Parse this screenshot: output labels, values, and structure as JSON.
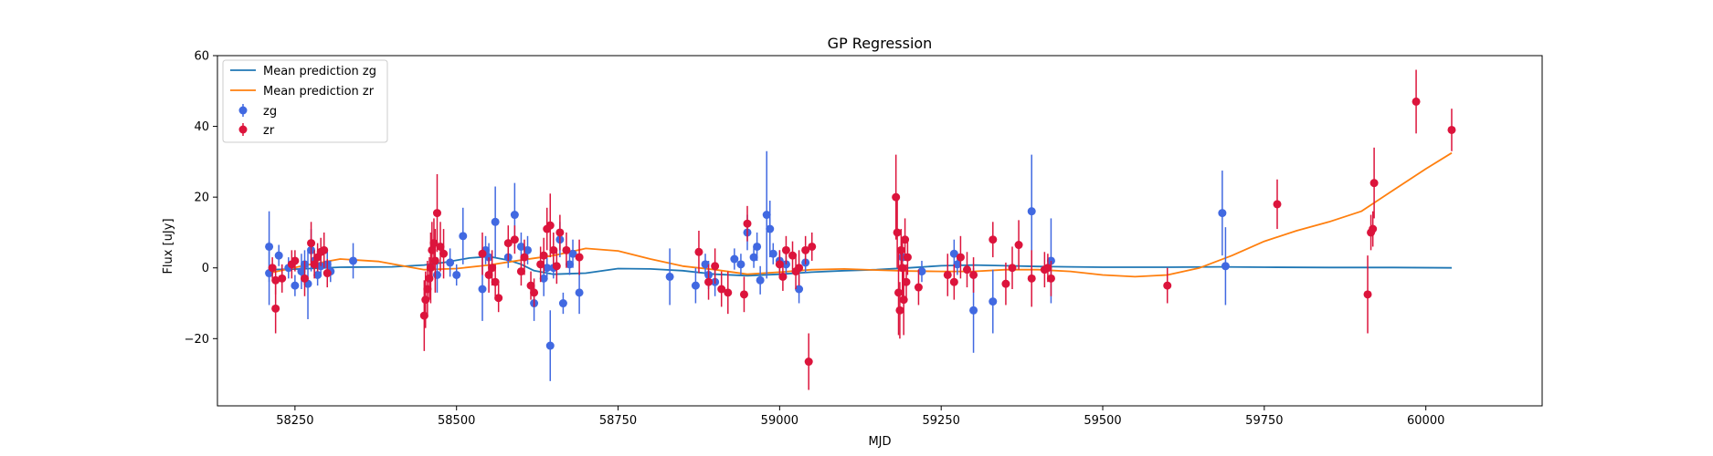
{
  "chart_data": {
    "type": "scatter",
    "title": "GP Regression",
    "xlabel": "MJD",
    "ylabel": "Flux [uJy]",
    "xlim": [
      58130,
      60180
    ],
    "ylim": [
      -39,
      60
    ],
    "xticks": [
      58250,
      58500,
      58750,
      59000,
      59250,
      59500,
      59750,
      60000
    ],
    "yticks": [
      -20,
      0,
      20,
      40,
      60
    ],
    "grid": false,
    "legend_position": "upper-left",
    "legend": [
      "Mean prediction zg",
      "Mean prediction zr",
      "zg",
      "zr"
    ],
    "colors": {
      "mean_zg": "#1f77b4",
      "mean_zr": "#ff7f0e",
      "zg": "#4169e1",
      "zr": "#dc143c"
    },
    "lines": [
      {
        "name": "Mean prediction zg",
        "color": "#1f77b4",
        "x": [
          58210,
          58260,
          58320,
          58400,
          58450,
          58480,
          58520,
          58550,
          58580,
          58600,
          58620,
          58650,
          58700,
          58750,
          58800,
          58850,
          58900,
          58950,
          59000,
          59050,
          59100,
          59150,
          59200,
          59250,
          59300,
          59350,
          59400,
          59450,
          59500,
          59600,
          59680,
          59750,
          59850,
          59950,
          60040
        ],
        "y": [
          -0.5,
          -0.3,
          0.2,
          0.3,
          0.8,
          1.5,
          2.8,
          3.2,
          2.2,
          1.0,
          -0.8,
          -1.8,
          -1.5,
          -0.2,
          -0.3,
          -0.8,
          -1.8,
          -2.2,
          -1.8,
          -1.2,
          -0.8,
          -0.5,
          0.0,
          0.6,
          0.8,
          0.6,
          0.4,
          0.3,
          0.2,
          0.2,
          0.3,
          0.2,
          0.1,
          0.1,
          0.0
        ]
      },
      {
        "name": "Mean prediction zr",
        "color": "#ff7f0e",
        "x": [
          58210,
          58260,
          58320,
          58380,
          58450,
          58500,
          58550,
          58600,
          58650,
          58700,
          58750,
          58800,
          58850,
          58900,
          58950,
          59000,
          59050,
          59100,
          59150,
          59200,
          59250,
          59300,
          59350,
          59400,
          59450,
          59500,
          59550,
          59600,
          59650,
          59700,
          59750,
          59800,
          59850,
          59900,
          59950,
          60000,
          60040
        ],
        "y": [
          -1.5,
          0.5,
          2.5,
          1.8,
          -0.5,
          -0.2,
          0.8,
          2.2,
          3.5,
          5.5,
          4.8,
          2.5,
          0.5,
          -0.5,
          -1.8,
          -1.2,
          -0.5,
          -0.3,
          -0.6,
          -0.9,
          -1.0,
          -1.0,
          -0.5,
          -0.5,
          -1.0,
          -2.0,
          -2.5,
          -2.0,
          0.0,
          3.5,
          7.5,
          10.5,
          13.0,
          16.0,
          22.0,
          28.0,
          32.5
        ]
      }
    ],
    "series": [
      {
        "name": "zg",
        "color": "#4169e1",
        "points": [
          [
            58210,
            6,
            10
          ],
          [
            58210,
            -1.5,
            9
          ],
          [
            58225,
            3.5,
            3
          ],
          [
            58240,
            0,
            3
          ],
          [
            58250,
            -5,
            3
          ],
          [
            58260,
            -1,
            5
          ],
          [
            58265,
            1,
            4
          ],
          [
            58270,
            -4.5,
            10
          ],
          [
            58275,
            5,
            6
          ],
          [
            58280,
            2,
            3
          ],
          [
            58285,
            -2,
            3
          ],
          [
            58290,
            0.5,
            3
          ],
          [
            58300,
            1,
            4
          ],
          [
            58305,
            -1,
            3
          ],
          [
            58340,
            2,
            5
          ],
          [
            58470,
            -2,
            5
          ],
          [
            58490,
            1.5,
            4
          ],
          [
            58500,
            -2,
            3
          ],
          [
            58510,
            9,
            8
          ],
          [
            58540,
            -6,
            9
          ],
          [
            58545,
            5,
            4
          ],
          [
            58550,
            3,
            4
          ],
          [
            58560,
            13,
            10
          ],
          [
            58580,
            3,
            3
          ],
          [
            58590,
            15,
            9
          ],
          [
            58600,
            6,
            4
          ],
          [
            58610,
            5,
            4
          ],
          [
            58620,
            -10,
            5
          ],
          [
            58635,
            -3,
            5
          ],
          [
            58640,
            0,
            3
          ],
          [
            58645,
            -22,
            10
          ],
          [
            58650,
            0,
            3
          ],
          [
            58660,
            8,
            5
          ],
          [
            58665,
            -10,
            3
          ],
          [
            58675,
            1,
            3
          ],
          [
            58680,
            4,
            4
          ],
          [
            58690,
            -7,
            6
          ],
          [
            58830,
            -2.5,
            8
          ],
          [
            58870,
            -5,
            5
          ],
          [
            58885,
            1,
            3
          ],
          [
            58890,
            -2,
            4
          ],
          [
            58900,
            -4,
            4
          ],
          [
            58930,
            2.5,
            3
          ],
          [
            58940,
            1,
            3
          ],
          [
            58950,
            10,
            5
          ],
          [
            58960,
            3,
            3
          ],
          [
            58965,
            6,
            4
          ],
          [
            58970,
            -3.5,
            4
          ],
          [
            58980,
            15,
            18
          ],
          [
            58985,
            11,
            8
          ],
          [
            58990,
            4,
            3
          ],
          [
            59000,
            2,
            3
          ],
          [
            59010,
            1,
            4
          ],
          [
            59030,
            -6,
            4
          ],
          [
            59040,
            1.5,
            3
          ],
          [
            59190,
            3,
            3
          ],
          [
            59220,
            -1,
            3
          ],
          [
            59270,
            4,
            4
          ],
          [
            59275,
            1,
            3
          ],
          [
            59300,
            -12,
            12
          ],
          [
            59330,
            -9.5,
            9
          ],
          [
            59390,
            16,
            16
          ],
          [
            59420,
            2,
            12
          ],
          [
            59685,
            15.5,
            12
          ],
          [
            59690,
            0.5,
            11
          ]
        ]
      },
      {
        "name": "zr",
        "color": "#dc143c",
        "points": [
          [
            58215,
            0,
            3
          ],
          [
            58220,
            -11.5,
            7
          ],
          [
            58220,
            -3.5,
            4
          ],
          [
            58230,
            -3,
            4
          ],
          [
            58245,
            1,
            4
          ],
          [
            58250,
            2,
            3
          ],
          [
            58265,
            -3,
            5
          ],
          [
            58275,
            7,
            6
          ],
          [
            58280,
            1,
            4
          ],
          [
            58285,
            3,
            4
          ],
          [
            58290,
            4.5,
            4
          ],
          [
            58295,
            5,
            5
          ],
          [
            58300,
            -1.5,
            4
          ],
          [
            58450,
            -13.5,
            10
          ],
          [
            58452,
            -9,
            8
          ],
          [
            58455,
            -6,
            8
          ],
          [
            58458,
            -3,
            6
          ],
          [
            58460,
            0,
            10
          ],
          [
            58462,
            5,
            8
          ],
          [
            58465,
            7,
            7
          ],
          [
            58467,
            2,
            9
          ],
          [
            58470,
            15.5,
            11
          ],
          [
            58475,
            6,
            7
          ],
          [
            58480,
            4,
            7
          ],
          [
            58540,
            4,
            6
          ],
          [
            58550,
            -2,
            5
          ],
          [
            58555,
            0,
            5
          ],
          [
            58560,
            -4,
            5
          ],
          [
            58565,
            -8.5,
            4
          ],
          [
            58580,
            7,
            5
          ],
          [
            58590,
            8,
            4
          ],
          [
            58600,
            -1,
            4
          ],
          [
            58605,
            3,
            5
          ],
          [
            58615,
            -5,
            4
          ],
          [
            58620,
            -7,
            4
          ],
          [
            58630,
            1,
            5
          ],
          [
            58635,
            3.5,
            5
          ],
          [
            58640,
            11,
            6
          ],
          [
            58645,
            12,
            9
          ],
          [
            58650,
            5,
            5
          ],
          [
            58655,
            0.5,
            5
          ],
          [
            58660,
            10,
            5
          ],
          [
            58670,
            5,
            5
          ],
          [
            58690,
            3,
            5
          ],
          [
            58875,
            4.5,
            6
          ],
          [
            58890,
            -4,
            5
          ],
          [
            58900,
            0.5,
            5
          ],
          [
            58910,
            -6,
            5
          ],
          [
            58920,
            -7,
            6
          ],
          [
            58945,
            -7.5,
            5
          ],
          [
            58950,
            12.5,
            5
          ],
          [
            59000,
            1,
            4
          ],
          [
            59005,
            -2.5,
            4
          ],
          [
            59010,
            5,
            4
          ],
          [
            59020,
            3.5,
            4
          ],
          [
            59025,
            -1,
            5
          ],
          [
            59030,
            0,
            5
          ],
          [
            59040,
            5,
            4
          ],
          [
            59045,
            -26.5,
            8
          ],
          [
            59050,
            6,
            4
          ],
          [
            59180,
            20,
            12
          ],
          [
            59182,
            10,
            10
          ],
          [
            59184,
            -7,
            12
          ],
          [
            59186,
            -12,
            8
          ],
          [
            59188,
            5,
            6
          ],
          [
            59190,
            0,
            8
          ],
          [
            59192,
            -9,
            10
          ],
          [
            59194,
            8,
            6
          ],
          [
            59196,
            -4,
            5
          ],
          [
            59198,
            3,
            5
          ],
          [
            59215,
            -5.5,
            5
          ],
          [
            59260,
            -2,
            6
          ],
          [
            59270,
            -4,
            5
          ],
          [
            59280,
            3,
            6
          ],
          [
            59290,
            -0.5,
            5
          ],
          [
            59300,
            -2,
            5
          ],
          [
            59330,
            8,
            5
          ],
          [
            59350,
            -4.5,
            6
          ],
          [
            59360,
            0,
            6
          ],
          [
            59370,
            6.5,
            7
          ],
          [
            59390,
            -3,
            8
          ],
          [
            59410,
            -0.5,
            5
          ],
          [
            59415,
            0,
            4
          ],
          [
            59420,
            -3,
            5
          ],
          [
            59600,
            -5,
            5
          ],
          [
            59770,
            18,
            7
          ],
          [
            59910,
            -7.5,
            11
          ],
          [
            59915,
            10,
            5
          ],
          [
            59918,
            11,
            5
          ],
          [
            59920,
            24,
            10
          ],
          [
            59985,
            47,
            9
          ],
          [
            60040,
            39,
            6
          ]
        ]
      }
    ]
  }
}
